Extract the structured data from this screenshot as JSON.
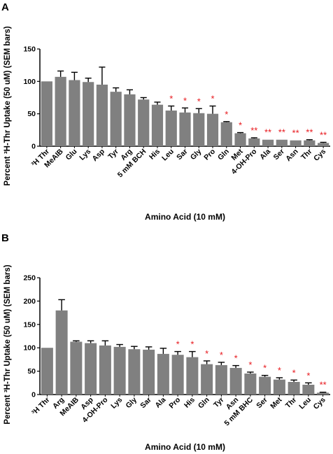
{
  "chart_data": [
    {
      "type": "bar",
      "panel": "A",
      "categories": [
        "³H Thr",
        "MeAIB",
        "Glu",
        "Lys",
        "Asp",
        "Tyr",
        "Arg",
        "5 mM BCH",
        "His",
        "Leu",
        "Sar",
        "Gly",
        "Pro",
        "Gln",
        "Met",
        "4-OH-Pro",
        "Ala",
        "Ser",
        "Asn",
        "Thr",
        "Cys"
      ],
      "values": [
        100,
        107,
        102,
        99,
        95,
        84,
        80,
        72,
        64,
        55,
        52,
        51,
        50,
        37,
        20,
        12,
        10,
        10,
        9,
        9,
        5
      ],
      "errors": [
        0,
        9,
        12,
        6,
        27,
        6,
        7,
        3,
        4,
        7,
        7,
        7,
        12,
        1,
        1,
        1,
        0,
        0,
        0,
        1,
        1
      ],
      "significance": [
        "",
        "",
        "",
        "",
        "",
        "",
        "",
        "",
        "",
        "*",
        "*",
        "*",
        "*",
        "*",
        "*",
        "**",
        "**",
        "**",
        "**",
        "**",
        "**"
      ],
      "xlabel": "Amino Acid (10 mM)",
      "ylabel": "Percent ³H-Thr Uptake (50 uM) (SEM bars)",
      "ylim": [
        0,
        150
      ],
      "yticks": [
        "0",
        "50",
        "100",
        "150"
      ],
      "bar_color": "#808080",
      "star_color": "#e8191e"
    },
    {
      "type": "bar",
      "panel": "B",
      "categories": [
        "³H Thr",
        "Arg",
        "MeAIB",
        "Asp",
        "4-OH-Pro",
        "Lys",
        "Gly",
        "Sar",
        "Ala",
        "Pro",
        "His",
        "Gln",
        "Tyr",
        "Asn",
        "5 mM BHC",
        "Ser",
        "Met",
        "Thr",
        "Leu",
        "Cys"
      ],
      "values": [
        100,
        180,
        113,
        110,
        105,
        102,
        97,
        96,
        87,
        85,
        80,
        65,
        63,
        57,
        45,
        38,
        32,
        27,
        21,
        4
      ],
      "errors": [
        0,
        23,
        2,
        5,
        10,
        5,
        6,
        6,
        12,
        7,
        12,
        7,
        6,
        5,
        3,
        3,
        4,
        4,
        4,
        1
      ],
      "significance": [
        "",
        "",
        "",
        "",
        "",
        "",
        "",
        "",
        "",
        "*",
        "*",
        "*",
        "*",
        "*",
        "*",
        "*",
        "*",
        "*",
        "*",
        "**"
      ],
      "xlabel": "Amino Acid (10 mM)",
      "ylabel": "Percent ³H-Thr Uptake (50 uM) (SEM bars)",
      "ylim": [
        0,
        250
      ],
      "yticks": [
        "0",
        "50",
        "100",
        "150",
        "200",
        "250"
      ],
      "bar_color": "#808080",
      "star_color": "#e8191e"
    }
  ]
}
